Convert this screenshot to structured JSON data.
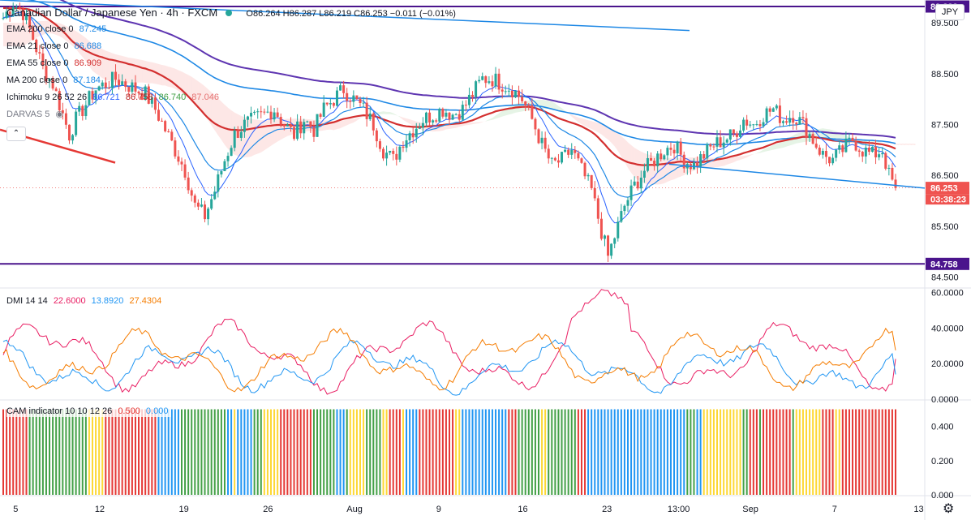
{
  "header": {
    "title": "Canadian Dollar / Japanese Yen · 4h · FXCM",
    "ohlc": "O86.264  H86.287  L86.219  C86.253  −0.011 (−0.01%)"
  },
  "currency_button": "JPY",
  "indicators": [
    {
      "label": "EMA 200 close 0",
      "value": "87.245",
      "color": "#1e88e5"
    },
    {
      "label": "EMA 21 close 0",
      "value": "86.688",
      "color": "#1e88e5"
    },
    {
      "label": "EMA 55 close 0",
      "value": "86.909",
      "color": "#d32f2f"
    },
    {
      "label": "MA 200 close 0",
      "value": "87.184",
      "color": "#1e88e5"
    },
    {
      "label": "Ichimoku 9 26 52 26",
      "values": [
        "86.721",
        "86.758",
        "86.740",
        "87.046"
      ],
      "colors": [
        "#2962ff",
        "#b71c1c",
        "#43a047",
        "#e57373"
      ]
    },
    {
      "label": "DARVAS 5",
      "value": ""
    }
  ],
  "price_axis": {
    "ticks": [
      "9",
      "89.500",
      "88.500",
      "87.500",
      "86.500",
      "85.500",
      "84.500"
    ],
    "labels": [
      {
        "text": "89.822",
        "color": "#4a148c"
      },
      {
        "text": "86.253",
        "color": "#ef5350"
      },
      {
        "text": "03:38:23",
        "color": "#ef5350"
      },
      {
        "text": "84.758",
        "color": "#4a148c"
      }
    ]
  },
  "dmi": {
    "label": "DMI 14 14",
    "values": [
      "22.6000",
      "13.8920",
      "27.4304"
    ],
    "colors": [
      "#e91e63",
      "#2196f3",
      "#f57c00"
    ],
    "ticks": [
      "60.0000",
      "40.0000",
      "20.0000",
      "0.0000"
    ]
  },
  "cam": {
    "label": "CAM indicator 10 10 12 26",
    "values": [
      "0.500",
      "0.000"
    ],
    "colors": [
      "#e53935",
      "#2196f3"
    ],
    "ticks": [
      "0.400",
      "0.200",
      "0.000"
    ]
  },
  "time_axis": [
    "5",
    "12",
    "19",
    "26",
    "Aug",
    "9",
    "16",
    "23",
    "13:00",
    "Sep",
    "7",
    "13"
  ],
  "chart_data": {
    "type": "candlestick",
    "title": "Canadian Dollar / Japanese Yen · 4h · FXCM",
    "ylim": [
      84.3,
      89.95
    ],
    "horizontal_levels": [
      89.822,
      84.758
    ],
    "last_price": 86.253,
    "price_path": [
      [
        0,
        89.6
      ],
      [
        3,
        89.9
      ],
      [
        6,
        89.7
      ],
      [
        9,
        89.2
      ],
      [
        12,
        88.6
      ],
      [
        15,
        88.3
      ],
      [
        18,
        87.7
      ],
      [
        20,
        87.3
      ],
      [
        22,
        87.6
      ],
      [
        25,
        87.9
      ],
      [
        28,
        88.2
      ],
      [
        31,
        88.3
      ],
      [
        34,
        88.4
      ],
      [
        37,
        88.3
      ],
      [
        40,
        88.2
      ],
      [
        43,
        88.1
      ],
      [
        46,
        87.8
      ],
      [
        49,
        87.4
      ],
      [
        52,
        87.0
      ],
      [
        55,
        86.6
      ],
      [
        58,
        85.9
      ],
      [
        61,
        85.7
      ],
      [
        64,
        86.2
      ],
      [
        67,
        86.8
      ],
      [
        70,
        87.3
      ],
      [
        73,
        87.5
      ],
      [
        76,
        87.6
      ],
      [
        79,
        87.7
      ],
      [
        82,
        87.8
      ],
      [
        85,
        87.5
      ],
      [
        88,
        87.3
      ],
      [
        91,
        87.6
      ],
      [
        94,
        87.4
      ],
      [
        97,
        87.8
      ],
      [
        100,
        88.0
      ],
      [
        103,
        88.2
      ],
      [
        106,
        88.0
      ],
      [
        109,
        87.8
      ],
      [
        112,
        87.5
      ],
      [
        115,
        87.0
      ],
      [
        118,
        86.8
      ],
      [
        121,
        87.2
      ],
      [
        124,
        87.4
      ],
      [
        127,
        87.6
      ],
      [
        130,
        87.7
      ],
      [
        133,
        87.8
      ],
      [
        136,
        87.7
      ],
      [
        139,
        87.8
      ],
      [
        142,
        88.1
      ],
      [
        145,
        88.4
      ],
      [
        148,
        88.4
      ],
      [
        151,
        88.3
      ],
      [
        154,
        88.2
      ],
      [
        157,
        88.0
      ],
      [
        160,
        87.6
      ],
      [
        163,
        87.1
      ],
      [
        166,
        86.7
      ],
      [
        169,
        86.8
      ],
      [
        172,
        87.0
      ],
      [
        175,
        86.6
      ],
      [
        178,
        86.2
      ],
      [
        181,
        85.4
      ],
      [
        183,
        84.9
      ],
      [
        185,
        85.3
      ],
      [
        188,
        85.9
      ],
      [
        191,
        86.3
      ],
      [
        194,
        86.6
      ],
      [
        197,
        86.8
      ],
      [
        200,
        87.0
      ],
      [
        203,
        87.1
      ],
      [
        206,
        86.8
      ],
      [
        209,
        86.7
      ],
      [
        212,
        86.9
      ],
      [
        215,
        87.1
      ],
      [
        218,
        87.2
      ],
      [
        221,
        87.3
      ],
      [
        224,
        87.6
      ],
      [
        227,
        87.5
      ],
      [
        230,
        87.7
      ],
      [
        233,
        87.8
      ],
      [
        236,
        87.6
      ],
      [
        239,
        87.7
      ],
      [
        242,
        87.5
      ],
      [
        245,
        87.2
      ],
      [
        248,
        86.9
      ],
      [
        251,
        86.8
      ],
      [
        254,
        87.0
      ],
      [
        257,
        87.2
      ],
      [
        260,
        87.0
      ],
      [
        263,
        86.9
      ],
      [
        266,
        87.0
      ],
      [
        268,
        86.5
      ],
      [
        270,
        86.25
      ]
    ],
    "series": [
      {
        "name": "EMA 200 close 0",
        "last": 87.245
      },
      {
        "name": "EMA 21 close 0",
        "last": 86.688
      },
      {
        "name": "EMA 55 close 0",
        "last": 86.909
      },
      {
        "name": "MA 200 close 0",
        "last": 87.184
      }
    ],
    "dmi_series": [
      {
        "name": "+DI",
        "last": 22.6
      },
      {
        "name": "-DI",
        "last": 13.892
      },
      {
        "name": "ADX",
        "last": 27.4304
      }
    ],
    "cam_ylim": [
      0,
      0.55
    ],
    "cam_colors": [
      "#e53935",
      "#2196f3",
      "#43a047",
      "#fdd835"
    ]
  }
}
